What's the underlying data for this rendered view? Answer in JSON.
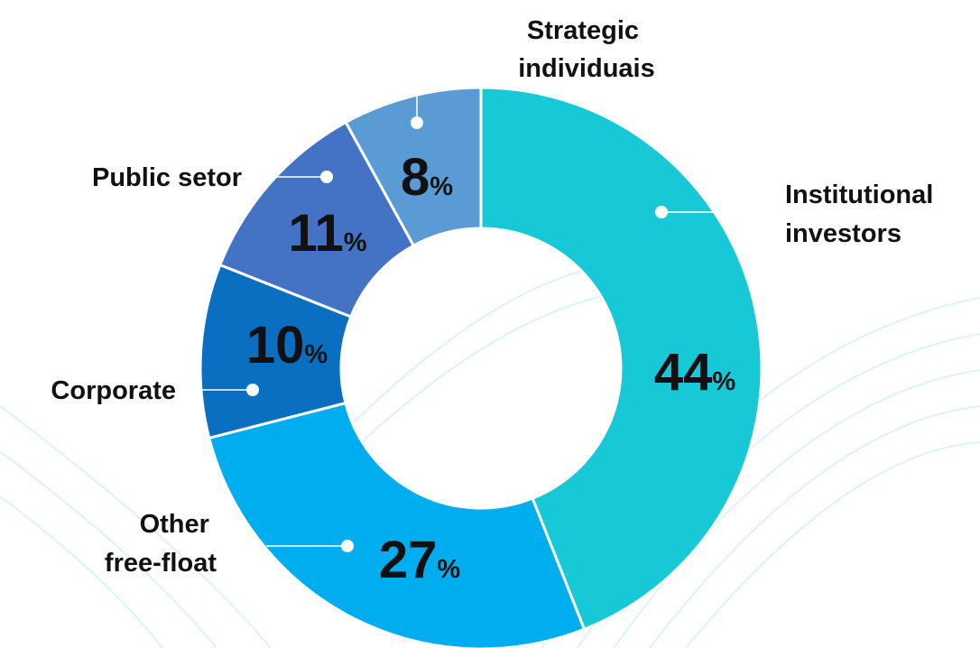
{
  "chart_data": {
    "type": "donut",
    "categories": [
      "Institutional investors",
      "Other free-float",
      "Corporate",
      "Public setor",
      "Strategic individuais"
    ],
    "values": [
      44,
      27,
      10,
      11,
      8
    ],
    "value_labels": [
      "44%",
      "27%",
      "10%",
      "11%",
      "8%"
    ],
    "colors": [
      "#17c9d6",
      "#00aeef",
      "#0b6fc1",
      "#4473c5",
      "#5b9bd5"
    ]
  }
}
